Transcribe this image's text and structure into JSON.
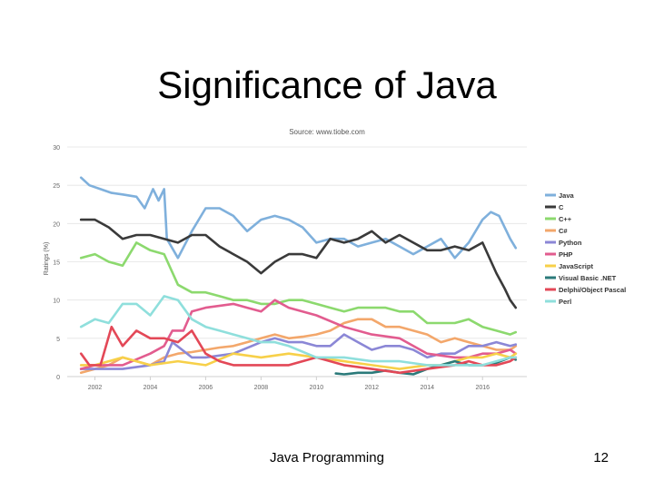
{
  "slide": {
    "title": "Significance of Java",
    "footer": "Java Programming",
    "page_number": "12"
  },
  "chart_data": {
    "type": "line",
    "source": "Source: www.tiobe.com",
    "ylabel": "Ratings (%)",
    "xlabel": "",
    "ylim": [
      0,
      30
    ],
    "xlim": [
      2001,
      2017.6
    ],
    "grid": "horizontal",
    "legend_position": "right",
    "y_ticks": [
      0,
      5,
      10,
      15,
      20,
      25,
      30
    ],
    "x_ticks": [
      2002,
      2004,
      2006,
      2008,
      2010,
      2012,
      2014,
      2016
    ],
    "series": [
      {
        "name": "Java",
        "color": "#7fb0dc",
        "x": [
          2001.5,
          2001.8,
          2002.2,
          2002.6,
          2003.0,
          2003.5,
          2003.8,
          2004.1,
          2004.3,
          2004.5,
          2004.6,
          2005.0,
          2005.5,
          2006.0,
          2006.5,
          2007.0,
          2007.5,
          2008.0,
          2008.5,
          2009.0,
          2009.5,
          2010.0,
          2010.5,
          2011.0,
          2011.5,
          2012.0,
          2012.5,
          2013.0,
          2013.5,
          2014.0,
          2014.5,
          2015.0,
          2015.5,
          2016.0,
          2016.3,
          2016.6,
          2017.0,
          2017.2
        ],
        "values": [
          26,
          25,
          24.5,
          24,
          23.8,
          23.5,
          22,
          24.5,
          23,
          24.5,
          18,
          15.5,
          19,
          22,
          22,
          21,
          19,
          20.5,
          21,
          20.5,
          19.5,
          17.5,
          18,
          18,
          17,
          17.5,
          18,
          17,
          16,
          17,
          18,
          15.5,
          17.5,
          20.5,
          21.5,
          21,
          18,
          16.8
        ]
      },
      {
        "name": "C",
        "color": "#3a3a3a",
        "x": [
          2001.5,
          2002.0,
          2002.5,
          2003.0,
          2003.5,
          2004.0,
          2004.5,
          2005.0,
          2005.5,
          2006.0,
          2006.5,
          2007.0,
          2007.5,
          2008.0,
          2008.5,
          2009.0,
          2009.5,
          2010.0,
          2010.5,
          2011.0,
          2011.5,
          2012.0,
          2012.5,
          2013.0,
          2013.5,
          2014.0,
          2014.5,
          2015.0,
          2015.5,
          2016.0,
          2016.5,
          2016.8,
          2017.0,
          2017.2
        ],
        "values": [
          20.5,
          20.5,
          19.5,
          18,
          18.5,
          18.5,
          18,
          17.5,
          18.5,
          18.5,
          17,
          16,
          15,
          13.5,
          15,
          16,
          16,
          15.5,
          18,
          17.5,
          18,
          19,
          17.5,
          18.5,
          17.5,
          16.5,
          16.5,
          17,
          16.5,
          17.5,
          13.5,
          11.5,
          10,
          9
        ]
      },
      {
        "name": "C++",
        "color": "#8cd96e",
        "x": [
          2001.5,
          2002.0,
          2002.5,
          2003.0,
          2003.5,
          2004.0,
          2004.5,
          2005.0,
          2005.5,
          2006.0,
          2006.5,
          2007.0,
          2007.5,
          2008.0,
          2008.5,
          2009.0,
          2009.5,
          2010.0,
          2010.5,
          2011.0,
          2011.5,
          2012.0,
          2012.5,
          2013.0,
          2013.5,
          2014.0,
          2014.5,
          2015.0,
          2015.5,
          2016.0,
          2016.5,
          2017.0,
          2017.2
        ],
        "values": [
          15.5,
          16,
          15,
          14.5,
          17.5,
          16.5,
          16,
          12,
          11,
          11,
          10.5,
          10,
          10,
          9.5,
          9.5,
          10,
          10,
          9.5,
          9,
          8.5,
          9,
          9,
          9,
          8.5,
          8.5,
          7,
          7,
          7,
          7.5,
          6.5,
          6,
          5.5,
          5.8
        ]
      },
      {
        "name": "C#",
        "color": "#f3a76b",
        "x": [
          2001.5,
          2002.0,
          2002.5,
          2003.0,
          2003.5,
          2004.0,
          2004.5,
          2005.0,
          2005.5,
          2006.0,
          2006.5,
          2007.0,
          2007.5,
          2008.0,
          2008.5,
          2009.0,
          2009.5,
          2010.0,
          2010.5,
          2011.0,
          2011.5,
          2012.0,
          2012.5,
          2013.0,
          2013.5,
          2014.0,
          2014.5,
          2015.0,
          2015.5,
          2016.0,
          2016.5,
          2017.0,
          2017.2
        ],
        "values": [
          0.5,
          1.0,
          1.5,
          2.5,
          2.0,
          1.5,
          2.5,
          3.0,
          3.2,
          3.5,
          3.8,
          4.0,
          4.5,
          5.0,
          5.5,
          5.0,
          5.2,
          5.5,
          6.0,
          7.0,
          7.5,
          7.5,
          6.5,
          6.5,
          6.0,
          5.5,
          4.5,
          5.0,
          4.5,
          4.0,
          3.5,
          3.5,
          4.0
        ]
      },
      {
        "name": "Python",
        "color": "#8b87d6",
        "x": [
          2001.5,
          2002.0,
          2003.0,
          2004.0,
          2004.5,
          2004.8,
          2005.5,
          2006.0,
          2007.0,
          2008.0,
          2008.5,
          2009.0,
          2009.5,
          2010.0,
          2010.5,
          2011.0,
          2011.5,
          2012.0,
          2012.5,
          2013.0,
          2013.5,
          2014.0,
          2014.5,
          2015.0,
          2015.5,
          2016.0,
          2016.5,
          2017.0,
          2017.2
        ],
        "values": [
          1.0,
          1.0,
          1.0,
          1.5,
          2.0,
          4.5,
          2.5,
          2.5,
          3.0,
          4.5,
          5.0,
          4.5,
          4.5,
          4.0,
          4.0,
          5.5,
          4.5,
          3.5,
          4.0,
          4.0,
          3.5,
          2.5,
          3.0,
          3.0,
          4.0,
          4.0,
          4.5,
          4.0,
          4.2
        ]
      },
      {
        "name": "PHP",
        "color": "#e25c8f",
        "x": [
          2001.5,
          2002.0,
          2003.0,
          2004.0,
          2004.5,
          2004.8,
          2005.2,
          2005.5,
          2006.0,
          2007.0,
          2007.5,
          2008.0,
          2008.5,
          2009.0,
          2010.0,
          2011.0,
          2012.0,
          2013.0,
          2014.0,
          2015.0,
          2015.5,
          2016.0,
          2016.5,
          2017.0,
          2017.2
        ],
        "values": [
          1.0,
          1.5,
          1.5,
          3.0,
          4.0,
          6.0,
          6.0,
          8.5,
          9.0,
          9.5,
          9.0,
          8.5,
          10.0,
          9.0,
          8.0,
          6.5,
          5.5,
          5.0,
          3.0,
          2.5,
          2.5,
          3.0,
          3.0,
          3.5,
          3.0
        ]
      },
      {
        "name": "JavaScript",
        "color": "#f7d049",
        "x": [
          2001.5,
          2002.0,
          2003.0,
          2004.0,
          2005.0,
          2006.0,
          2007.0,
          2008.0,
          2009.0,
          2010.0,
          2011.0,
          2012.0,
          2013.0,
          2014.0,
          2014.5,
          2015.0,
          2015.5,
          2016.0,
          2016.5,
          2017.0,
          2017.2
        ],
        "values": [
          1.5,
          1.5,
          2.5,
          1.5,
          2.0,
          1.5,
          3.0,
          2.5,
          3.0,
          2.5,
          2.0,
          1.5,
          1.0,
          1.5,
          1.5,
          2.0,
          2.5,
          2.5,
          3.0,
          2.5,
          3.0
        ]
      },
      {
        "name": "Visual Basic .NET",
        "color": "#2b7a7a",
        "x": [
          2010.7,
          2011.0,
          2011.5,
          2012.0,
          2012.5,
          2013.0,
          2013.5,
          2014.0,
          2014.5,
          2015.0,
          2015.5,
          2016.0,
          2016.5,
          2017.0,
          2017.2
        ],
        "values": [
          0.4,
          0.3,
          0.5,
          0.5,
          0.8,
          0.5,
          0.3,
          1.0,
          1.5,
          2.0,
          1.5,
          1.5,
          1.8,
          2.5,
          2.2
        ]
      },
      {
        "name": "Delphi/Object Pascal",
        "color": "#e34857",
        "x": [
          2001.5,
          2001.8,
          2002.2,
          2002.6,
          2003.0,
          2003.5,
          2004.0,
          2004.5,
          2005.0,
          2005.5,
          2006.0,
          2006.5,
          2007.0,
          2008.0,
          2009.0,
          2010.0,
          2011.0,
          2012.0,
          2013.0,
          2014.0,
          2015.0,
          2015.5,
          2016.0,
          2016.5,
          2017.0,
          2017.2
        ],
        "values": [
          3.0,
          1.5,
          1.5,
          6.5,
          4.0,
          6.0,
          5.0,
          5.0,
          4.5,
          6.0,
          3.0,
          2.0,
          1.5,
          1.5,
          1.5,
          2.5,
          1.5,
          1.0,
          0.5,
          1.0,
          1.5,
          2.0,
          1.5,
          1.5,
          2.0,
          2.5
        ]
      },
      {
        "name": "Perl",
        "color": "#8fdfdc",
        "x": [
          2001.5,
          2002.0,
          2002.5,
          2003.0,
          2003.5,
          2004.0,
          2004.5,
          2005.0,
          2005.5,
          2006.0,
          2006.5,
          2007.0,
          2007.5,
          2008.0,
          2008.5,
          2009.0,
          2010.0,
          2011.0,
          2012.0,
          2013.0,
          2014.0,
          2015.0,
          2016.0,
          2016.5,
          2017.0,
          2017.2
        ],
        "values": [
          6.5,
          7.5,
          7.0,
          9.5,
          9.5,
          8.0,
          10.5,
          10.0,
          7.5,
          6.5,
          6.0,
          5.5,
          5.0,
          4.5,
          4.5,
          4.0,
          2.5,
          2.5,
          2.0,
          2.0,
          1.5,
          1.5,
          1.5,
          2.0,
          2.5,
          2.5
        ]
      }
    ]
  }
}
